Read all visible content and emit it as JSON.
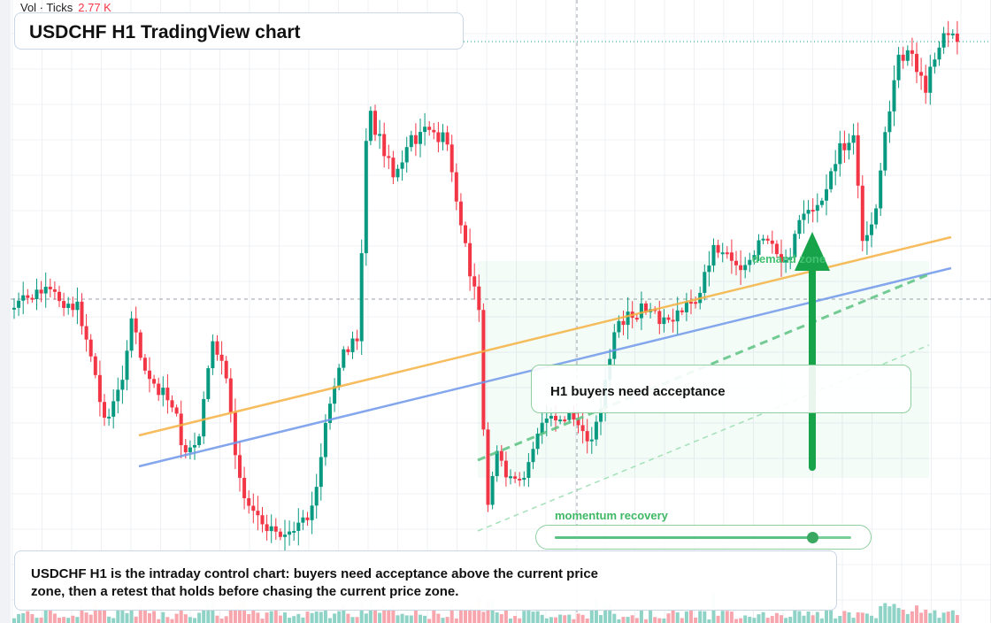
{
  "header": {
    "vol_label": "Vol · Ticks",
    "vol_value": "2.77 K",
    "title": "USDCHF H1 TradingView chart"
  },
  "annotations": {
    "callout": "H1 buyers need acceptance",
    "demand_zone": "demand zone",
    "momentum": "momentum recovery",
    "momentum_level": 0.87,
    "summary": "USDCHF H1 is the intraday control chart: buyers need acceptance above the current price zone, then a retest that holds before chasing the current price zone."
  },
  "colors": {
    "up": "#089981",
    "down": "#f23645",
    "vol_up": "#8fd2c6",
    "vol_down": "#f7a6ae",
    "orange_line": "#f5b041",
    "blue_line": "#6f97ea",
    "zone": "#2ecc71",
    "arrow": "#16a34a"
  },
  "icons": {
    "arrow": "up-arrow-icon"
  }
}
